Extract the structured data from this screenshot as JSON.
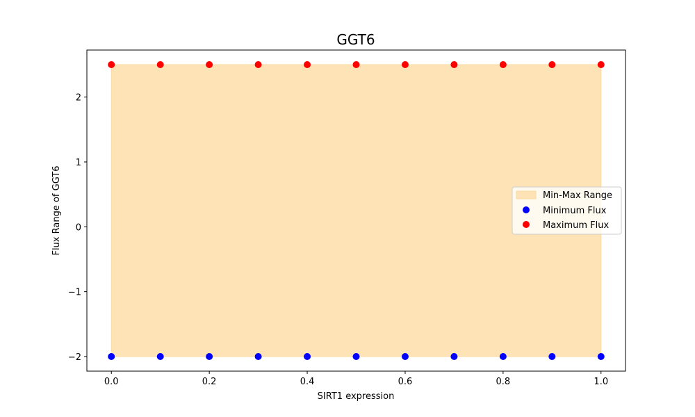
{
  "chart_data": {
    "type": "scatter",
    "title": "GGT6",
    "xlabel": "SIRT1 expression",
    "ylabel": "Flux Range of GGT6",
    "xlim": [
      -0.05,
      1.05
    ],
    "ylim": [
      -2.225,
      2.725
    ],
    "x": [
      0.0,
      0.1,
      0.2,
      0.3,
      0.4,
      0.5,
      0.6,
      0.7,
      0.8,
      0.9,
      1.0
    ],
    "x_ticks": [
      0.0,
      0.2,
      0.4,
      0.6,
      0.8,
      1.0
    ],
    "x_tick_labels": [
      "0.0",
      "0.2",
      "0.4",
      "0.6",
      "0.8",
      "1.0"
    ],
    "y_ticks": [
      -2,
      -1,
      0,
      1,
      2
    ],
    "y_tick_labels": [
      "−2",
      "−1",
      "0",
      "1",
      "2"
    ],
    "grid": false,
    "legend_position": "center-right",
    "fill": {
      "name": "Min-Max Range",
      "color": "#fde3b5",
      "edge_color": "#f9d9a0"
    },
    "series": [
      {
        "name": "Minimum Flux",
        "color": "#0000ff",
        "values": [
          -2,
          -2,
          -2,
          -2,
          -2,
          -2,
          -2,
          -2,
          -2,
          -2,
          -2
        ]
      },
      {
        "name": "Maximum Flux",
        "color": "#ff0000",
        "values": [
          2.5,
          2.5,
          2.5,
          2.5,
          2.5,
          2.5,
          2.5,
          2.5,
          2.5,
          2.5,
          2.5
        ]
      }
    ]
  }
}
